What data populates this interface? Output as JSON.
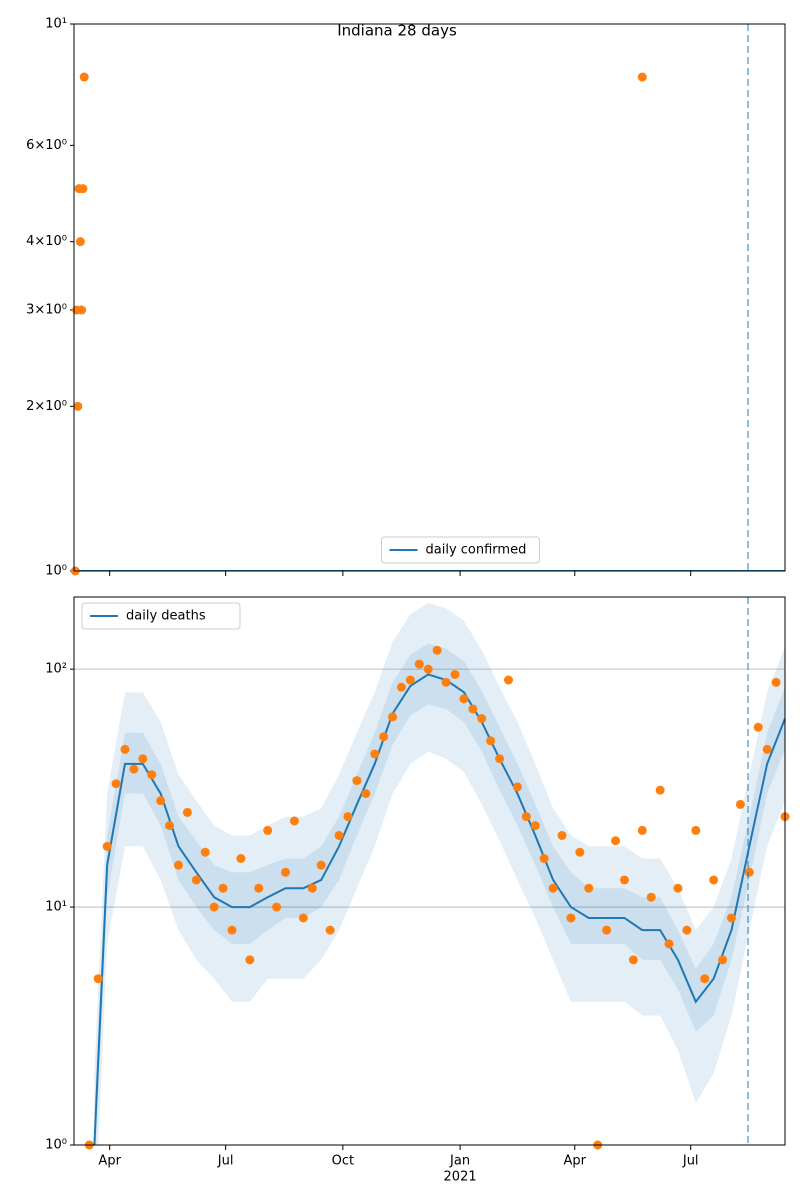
{
  "chart_data": [
    {
      "type": "line",
      "title": "Indiana 28 days",
      "log_y": true,
      "grid": false,
      "legend": "lower center",
      "xlim": [
        "2020-03-04",
        "2021-09-13"
      ],
      "xticks": [
        "2020-04-01",
        "2020-07-01",
        "2020-10-01",
        "2021-01-01",
        "2021-04-01",
        "2021-07-01"
      ],
      "ylim": [
        1,
        10
      ],
      "yticks": [
        {
          "value": 1,
          "label": "10⁰"
        },
        {
          "value": 2,
          "label": "2×10⁰"
        },
        {
          "value": 3,
          "label": "3×10⁰"
        },
        {
          "value": 4,
          "label": "4×10⁰"
        },
        {
          "value": 6,
          "label": "6×10⁰"
        },
        {
          "value": 10,
          "label": "10¹"
        }
      ],
      "vline": "2021-08-15",
      "series": [
        {
          "name": "daily confirmed",
          "color": "#1f77b4",
          "x": [
            "2020-03-04",
            "2021-09-13"
          ],
          "values": [
            1,
            1
          ]
        }
      ],
      "points": {
        "color": "#ff7f0e",
        "x": [
          "2020-03-05",
          "2020-03-06",
          "2020-03-07",
          "2020-03-08",
          "2020-03-09",
          "2020-03-10",
          "2020-03-11",
          "2020-03-12",
          "2021-05-24"
        ],
        "values": [
          1,
          3,
          2,
          5,
          4,
          3,
          5,
          8,
          8
        ]
      }
    },
    {
      "type": "line",
      "log_y": true,
      "grid": true,
      "legend": "upper left",
      "xlim": [
        "2020-03-04",
        "2021-09-13"
      ],
      "xticks": [
        {
          "value": "2020-04-01",
          "label": "Apr"
        },
        {
          "value": "2020-07-01",
          "label": "Jul"
        },
        {
          "value": "2020-10-01",
          "label": "Oct"
        },
        {
          "value": "2021-01-01",
          "label": "Jan"
        },
        {
          "value": "2021-04-01",
          "label": "Apr"
        },
        {
          "value": "2021-07-01",
          "label": "Jul"
        }
      ],
      "year_label": {
        "value": "2021-01-01",
        "label": "2021"
      },
      "ylim": [
        1,
        201
      ],
      "yticks": [
        {
          "value": 1,
          "label": "10⁰"
        },
        {
          "value": 10,
          "label": "10¹"
        },
        {
          "value": 100,
          "label": "10²"
        }
      ],
      "vline": "2021-08-15",
      "series": [
        {
          "name": "daily deaths",
          "color": "#1f77b4",
          "x": [
            "2020-03-20",
            "2020-03-30",
            "2020-04-13",
            "2020-04-27",
            "2020-05-11",
            "2020-05-25",
            "2020-06-08",
            "2020-06-22",
            "2020-07-06",
            "2020-07-20",
            "2020-08-03",
            "2020-08-17",
            "2020-08-31",
            "2020-09-14",
            "2020-09-28",
            "2020-10-12",
            "2020-10-26",
            "2020-11-09",
            "2020-11-23",
            "2020-12-07",
            "2020-12-21",
            "2021-01-04",
            "2021-01-18",
            "2021-02-01",
            "2021-02-15",
            "2021-03-01",
            "2021-03-15",
            "2021-03-29",
            "2021-04-12",
            "2021-04-26",
            "2021-05-10",
            "2021-05-24",
            "2021-06-07",
            "2021-06-21",
            "2021-07-05",
            "2021-07-19",
            "2021-08-02",
            "2021-08-16",
            "2021-08-30",
            "2021-09-13"
          ],
          "values": [
            1,
            15,
            40,
            40,
            30,
            18,
            14,
            11,
            10,
            10,
            11,
            12,
            12,
            13,
            18,
            27,
            40,
            65,
            85,
            95,
            90,
            80,
            60,
            42,
            30,
            20,
            13,
            10,
            9,
            9,
            9,
            8,
            8,
            6,
            4,
            5,
            8,
            18,
            40,
            62
          ],
          "bands": [
            {
              "lower": [
                0.4,
                7,
                18,
                18,
                13,
                8,
                6,
                5,
                4,
                4,
                5,
                5,
                5,
                6,
                8,
                12,
                18,
                30,
                40,
                45,
                42,
                37,
                27,
                19,
                13,
                9,
                6,
                4,
                4,
                4,
                4,
                3.5,
                3.5,
                2.5,
                1.5,
                2,
                3.5,
                8,
                18,
                28
              ],
              "upper": [
                2,
                30,
                80,
                80,
                60,
                36,
                28,
                22,
                20,
                20,
                22,
                24,
                24,
                26,
                36,
                54,
                80,
                130,
                170,
                190,
                180,
                160,
                120,
                84,
                60,
                40,
                26,
                20,
                18,
                18,
                18,
                16,
                16,
                12,
                8,
                10,
                16,
                36,
                80,
                124
              ]
            },
            {
              "lower": [
                0.7,
                11,
                30,
                30,
                22,
                13,
                10,
                8,
                7,
                7,
                8,
                9,
                9,
                10,
                13,
                20,
                30,
                48,
                64,
                71,
                68,
                60,
                45,
                31,
                22,
                15,
                10,
                7,
                7,
                7,
                7,
                6,
                6,
                4.5,
                3,
                3.5,
                6,
                13,
                30,
                46
              ],
              "upper": [
                1.4,
                20,
                54,
                54,
                40,
                24,
                19,
                15,
                14,
                14,
                15,
                16,
                16,
                18,
                24,
                36,
                54,
                88,
                115,
                128,
                122,
                108,
                81,
                57,
                40,
                27,
                18,
                14,
                12,
                12,
                12,
                11,
                11,
                8,
                5.5,
                7,
                11,
                24,
                54,
                84
              ]
            }
          ]
        }
      ],
      "points": {
        "color": "#ff7f0e",
        "x": [
          "2020-03-16",
          "2020-03-23",
          "2020-03-30",
          "2020-04-06",
          "2020-04-13",
          "2020-04-20",
          "2020-04-27",
          "2020-05-04",
          "2020-05-11",
          "2020-05-18",
          "2020-05-25",
          "2020-06-01",
          "2020-06-08",
          "2020-06-15",
          "2020-06-22",
          "2020-06-29",
          "2020-07-06",
          "2020-07-13",
          "2020-07-20",
          "2020-07-27",
          "2020-08-03",
          "2020-08-10",
          "2020-08-17",
          "2020-08-24",
          "2020-08-31",
          "2020-09-07",
          "2020-09-14",
          "2020-09-21",
          "2020-09-28",
          "2020-10-05",
          "2020-10-12",
          "2020-10-19",
          "2020-10-26",
          "2020-11-02",
          "2020-11-09",
          "2020-11-16",
          "2020-11-23",
          "2020-11-30",
          "2020-12-07",
          "2020-12-14",
          "2020-12-21",
          "2020-12-28",
          "2021-01-04",
          "2021-01-11",
          "2021-01-18",
          "2021-01-25",
          "2021-02-01",
          "2021-02-08",
          "2021-02-15",
          "2021-02-22",
          "2021-03-01",
          "2021-03-08",
          "2021-03-15",
          "2021-03-22",
          "2021-03-29",
          "2021-04-05",
          "2021-04-12",
          "2021-04-19",
          "2021-04-26",
          "2021-05-03",
          "2021-05-10",
          "2021-05-17",
          "2021-05-24",
          "2021-05-31",
          "2021-06-07",
          "2021-06-14",
          "2021-06-21",
          "2021-06-28",
          "2021-07-05",
          "2021-07-12",
          "2021-07-19",
          "2021-07-26",
          "2021-08-02",
          "2021-08-09",
          "2021-08-16",
          "2021-08-23",
          "2021-08-30",
          "2021-09-06",
          "2021-09-13"
        ],
        "values": [
          1,
          5,
          18,
          33,
          46,
          38,
          42,
          36,
          28,
          22,
          15,
          25,
          13,
          17,
          10,
          12,
          8,
          16,
          6,
          12,
          21,
          10,
          14,
          23,
          9,
          12,
          15,
          8,
          20,
          24,
          34,
          30,
          44,
          52,
          63,
          84,
          90,
          105,
          100,
          120,
          88,
          95,
          75,
          68,
          62,
          50,
          42,
          90,
          32,
          24,
          22,
          16,
          12,
          20,
          9,
          17,
          12,
          1,
          8,
          19,
          13,
          6,
          21,
          11,
          31,
          7,
          12,
          8,
          21,
          5,
          13,
          6,
          9,
          27,
          14,
          57,
          46,
          88,
          24
        ]
      }
    }
  ]
}
